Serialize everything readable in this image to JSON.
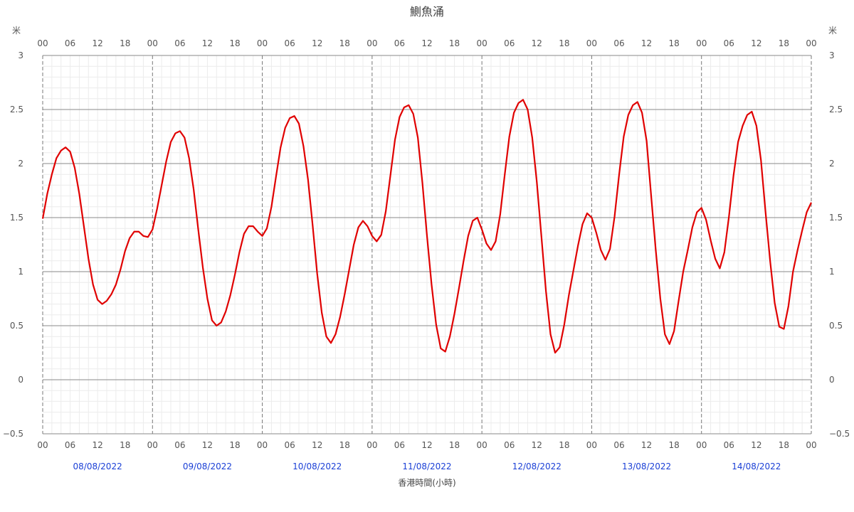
{
  "chart_data": {
    "type": "line",
    "title": "鰂魚涌",
    "ylabel_left": "米",
    "ylabel_right": "米",
    "xlabel": "香港時間(小時)",
    "ylim": [
      -0.5,
      3
    ],
    "yticks": [
      "−0.5",
      "0",
      "0.5",
      "1",
      "1.5",
      "2",
      "2.5",
      "3"
    ],
    "ytick_values": [
      -0.5,
      0,
      0.5,
      1,
      1.5,
      2,
      2.5,
      3
    ],
    "xlim_hours": [
      0,
      168
    ],
    "hour_tick_labels": [
      "00",
      "06",
      "12",
      "18"
    ],
    "final_hour_label": "00",
    "dates": [
      "08/08/2022",
      "09/08/2022",
      "10/08/2022",
      "11/08/2022",
      "12/08/2022",
      "13/08/2022",
      "14/08/2022"
    ],
    "grid": true,
    "line_color": "#e00000",
    "series": [
      {
        "x": [
          0,
          1,
          2,
          3,
          4,
          5,
          6,
          7,
          8,
          9,
          10,
          11,
          12,
          13,
          14,
          15,
          16,
          17,
          18,
          19,
          20,
          21,
          22,
          23,
          24,
          25,
          26,
          27,
          28,
          29,
          30,
          31,
          32,
          33,
          34,
          35,
          36,
          37,
          38,
          39,
          40,
          41,
          42,
          43,
          44,
          45,
          46,
          47,
          48,
          49,
          50,
          51,
          52,
          53,
          54,
          55,
          56,
          57,
          58,
          59,
          60,
          61,
          62,
          63,
          64,
          65,
          66,
          67,
          68,
          69,
          70,
          71,
          72,
          73,
          74,
          75,
          76,
          77,
          78,
          79,
          80,
          81,
          82,
          83,
          84,
          85,
          86,
          87,
          88,
          89,
          90,
          91,
          92,
          93,
          94,
          95,
          96,
          97,
          98,
          99,
          100,
          101,
          102,
          103,
          104,
          105,
          106,
          107,
          108,
          109,
          110,
          111,
          112,
          113,
          114,
          115,
          116,
          117,
          118,
          119,
          120,
          121,
          122,
          123,
          124,
          125,
          126,
          127,
          128,
          129,
          130,
          131,
          132,
          133,
          134,
          135,
          136,
          137,
          138,
          139,
          140,
          141,
          142,
          143,
          144,
          145,
          146,
          147,
          148,
          149,
          150,
          151,
          152,
          153,
          154,
          155,
          156,
          157,
          158,
          159,
          160,
          161,
          162,
          163,
          164,
          165,
          166,
          167,
          168
        ],
        "y": [
          1.49,
          1.72,
          1.9,
          2.05,
          2.12,
          2.15,
          2.11,
          1.96,
          1.72,
          1.42,
          1.12,
          0.88,
          0.74,
          0.7,
          0.73,
          0.79,
          0.88,
          1.02,
          1.19,
          1.31,
          1.37,
          1.37,
          1.33,
          1.32,
          1.39,
          1.58,
          1.8,
          2.02,
          2.2,
          2.28,
          2.3,
          2.24,
          2.05,
          1.76,
          1.39,
          1.04,
          0.75,
          0.55,
          0.5,
          0.53,
          0.63,
          0.78,
          0.97,
          1.18,
          1.35,
          1.42,
          1.42,
          1.37,
          1.33,
          1.4,
          1.6,
          1.88,
          2.15,
          2.33,
          2.42,
          2.44,
          2.37,
          2.16,
          1.85,
          1.43,
          0.98,
          0.62,
          0.4,
          0.34,
          0.42,
          0.58,
          0.79,
          1.02,
          1.25,
          1.41,
          1.47,
          1.42,
          1.33,
          1.28,
          1.34,
          1.56,
          1.89,
          2.22,
          2.43,
          2.52,
          2.54,
          2.46,
          2.24,
          1.82,
          1.33,
          0.88,
          0.51,
          0.29,
          0.26,
          0.4,
          0.61,
          0.85,
          1.1,
          1.33,
          1.47,
          1.5,
          1.39,
          1.26,
          1.2,
          1.28,
          1.53,
          1.9,
          2.25,
          2.47,
          2.56,
          2.59,
          2.5,
          2.24,
          1.83,
          1.33,
          0.82,
          0.42,
          0.25,
          0.3,
          0.51,
          0.78,
          1.01,
          1.24,
          1.44,
          1.54,
          1.5,
          1.36,
          1.2,
          1.11,
          1.21,
          1.51,
          1.9,
          2.25,
          2.45,
          2.54,
          2.57,
          2.47,
          2.21,
          1.7,
          1.2,
          0.75,
          0.42,
          0.33,
          0.45,
          0.73,
          1,
          1.2,
          1.41,
          1.55,
          1.59,
          1.48,
          1.29,
          1.12,
          1.03,
          1.18,
          1.51,
          1.89,
          2.2,
          2.35,
          2.45,
          2.48,
          2.35,
          2.03,
          1.55,
          1.1,
          0.71,
          0.49,
          0.47,
          0.68,
          1,
          1.2,
          1.38,
          1.55,
          1.64
        ]
      }
    ]
  }
}
